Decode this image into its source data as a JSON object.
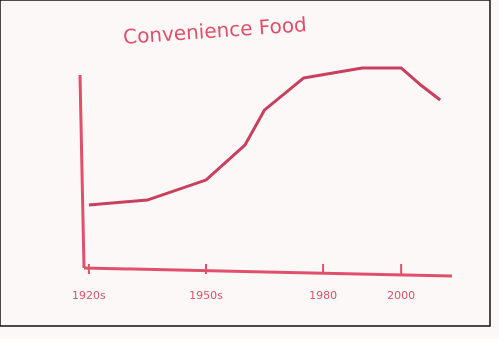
{
  "chart_data": {
    "type": "line",
    "title": "Convenience Food",
    "x": [
      1920,
      1935,
      1950,
      1960,
      1965,
      1975,
      1990,
      2000,
      2005,
      2010
    ],
    "series": [
      {
        "name": "Convenience Food",
        "color": "#c8405e",
        "values": [
          31.5,
          34,
          44,
          61.5,
          79,
          95,
          100,
          100,
          91.5,
          84
        ]
      }
    ],
    "xlim": [
      1919,
      2012
    ],
    "ylim": [
      0,
      110
    ],
    "xticks": [
      {
        "value": 1920,
        "label": "1920s"
      },
      {
        "value": 1950,
        "label": "1950s"
      },
      {
        "value": 1980,
        "label": "1980"
      },
      {
        "value": 2000,
        "label": "2000"
      }
    ],
    "axis_color": "#e0506a",
    "grid": false
  }
}
